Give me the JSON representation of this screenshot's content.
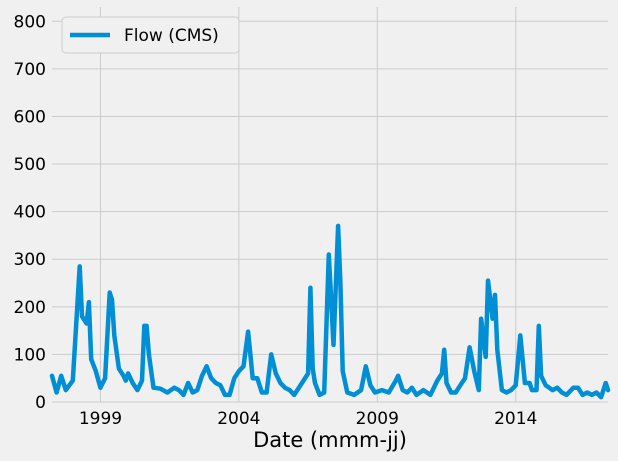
{
  "chart_data": {
    "type": "line",
    "title": "",
    "xlabel": "Date (mmm-jj)",
    "ylabel": "",
    "xlim": [
      "1997-04",
      "2017-05"
    ],
    "ylim": [
      0,
      830
    ],
    "grid": true,
    "legend_position": "top-left",
    "x_tick_labels": [
      "1999",
      "2004",
      "2009",
      "2014"
    ],
    "x_ticks": [
      "1999-01",
      "2004-01",
      "2009-01",
      "2014-01"
    ],
    "y_ticks": [
      0,
      100,
      200,
      300,
      400,
      500,
      600,
      700,
      800
    ],
    "series": [
      {
        "name": "Flow (CMS)",
        "color": "#008fd5",
        "points": [
          [
            "1997-04",
            55
          ],
          [
            "1997-06",
            20
          ],
          [
            "1997-08",
            55
          ],
          [
            "1997-10",
            25
          ],
          [
            "1998-01",
            45
          ],
          [
            "1998-04",
            285
          ],
          [
            "1998-05",
            180
          ],
          [
            "1998-07",
            165
          ],
          [
            "1998-08",
            210
          ],
          [
            "1998-09",
            90
          ],
          [
            "1998-11",
            65
          ],
          [
            "1999-01",
            30
          ],
          [
            "1999-03",
            50
          ],
          [
            "1999-05",
            230
          ],
          [
            "1999-06",
            215
          ],
          [
            "1999-07",
            140
          ],
          [
            "1999-09",
            70
          ],
          [
            "1999-11",
            55
          ],
          [
            "1999-12",
            45
          ],
          [
            "2000-01",
            60
          ],
          [
            "2000-03",
            40
          ],
          [
            "2000-05",
            25
          ],
          [
            "2000-07",
            45
          ],
          [
            "2000-08",
            160
          ],
          [
            "2000-09",
            160
          ],
          [
            "2000-10",
            100
          ],
          [
            "2000-12",
            30
          ],
          [
            "2001-03",
            28
          ],
          [
            "2001-06",
            20
          ],
          [
            "2001-09",
            30
          ],
          [
            "2001-11",
            25
          ],
          [
            "2002-01",
            15
          ],
          [
            "2002-03",
            40
          ],
          [
            "2002-05",
            20
          ],
          [
            "2002-07",
            25
          ],
          [
            "2002-09",
            55
          ],
          [
            "2002-11",
            75
          ],
          [
            "2003-01",
            50
          ],
          [
            "2003-03",
            40
          ],
          [
            "2003-05",
            35
          ],
          [
            "2003-07",
            15
          ],
          [
            "2003-09",
            15
          ],
          [
            "2003-11",
            50
          ],
          [
            "2004-01",
            65
          ],
          [
            "2004-03",
            75
          ],
          [
            "2004-05",
            148
          ],
          [
            "2004-07",
            50
          ],
          [
            "2004-09",
            50
          ],
          [
            "2004-11",
            20
          ],
          [
            "2005-01",
            20
          ],
          [
            "2005-03",
            100
          ],
          [
            "2005-05",
            60
          ],
          [
            "2005-07",
            40
          ],
          [
            "2005-09",
            30
          ],
          [
            "2005-11",
            25
          ],
          [
            "2006-01",
            15
          ],
          [
            "2006-03",
            30
          ],
          [
            "2006-05",
            45
          ],
          [
            "2006-07",
            60
          ],
          [
            "2006-08",
            240
          ],
          [
            "2006-09",
            70
          ],
          [
            "2006-10",
            40
          ],
          [
            "2006-12",
            15
          ],
          [
            "2007-02",
            20
          ],
          [
            "2007-04",
            310
          ],
          [
            "2007-06",
            120
          ],
          [
            "2007-08",
            370
          ],
          [
            "2007-09",
            250
          ],
          [
            "2007-10",
            65
          ],
          [
            "2007-12",
            20
          ],
          [
            "2008-03",
            15
          ],
          [
            "2008-06",
            25
          ],
          [
            "2008-08",
            75
          ],
          [
            "2008-10",
            35
          ],
          [
            "2008-12",
            20
          ],
          [
            "2009-03",
            25
          ],
          [
            "2009-06",
            20
          ],
          [
            "2009-09",
            45
          ],
          [
            "2009-10",
            55
          ],
          [
            "2009-12",
            25
          ],
          [
            "2010-02",
            20
          ],
          [
            "2010-04",
            30
          ],
          [
            "2010-06",
            15
          ],
          [
            "2010-09",
            25
          ],
          [
            "2010-12",
            15
          ],
          [
            "2011-03",
            45
          ],
          [
            "2011-05",
            60
          ],
          [
            "2011-06",
            110
          ],
          [
            "2011-07",
            40
          ],
          [
            "2011-09",
            20
          ],
          [
            "2011-11",
            20
          ],
          [
            "2012-01",
            35
          ],
          [
            "2012-03",
            50
          ],
          [
            "2012-05",
            115
          ],
          [
            "2012-07",
            65
          ],
          [
            "2012-09",
            25
          ],
          [
            "2012-10",
            175
          ],
          [
            "2012-12",
            95
          ],
          [
            "2013-01",
            255
          ],
          [
            "2013-03",
            175
          ],
          [
            "2013-04",
            225
          ],
          [
            "2013-05",
            110
          ],
          [
            "2013-07",
            25
          ],
          [
            "2013-09",
            20
          ],
          [
            "2013-11",
            25
          ],
          [
            "2014-01",
            35
          ],
          [
            "2014-03",
            140
          ],
          [
            "2014-05",
            40
          ],
          [
            "2014-07",
            40
          ],
          [
            "2014-08",
            25
          ],
          [
            "2014-10",
            25
          ],
          [
            "2014-11",
            160
          ],
          [
            "2014-12",
            55
          ],
          [
            "2015-02",
            35
          ],
          [
            "2015-05",
            25
          ],
          [
            "2015-07",
            30
          ],
          [
            "2015-09",
            20
          ],
          [
            "2015-11",
            15
          ],
          [
            "2016-02",
            30
          ],
          [
            "2016-04",
            30
          ],
          [
            "2016-06",
            15
          ],
          [
            "2016-08",
            20
          ],
          [
            "2016-10",
            15
          ],
          [
            "2016-12",
            20
          ],
          [
            "2017-02",
            10
          ],
          [
            "2017-04",
            40
          ],
          [
            "2017-05",
            25
          ]
        ]
      }
    ]
  }
}
